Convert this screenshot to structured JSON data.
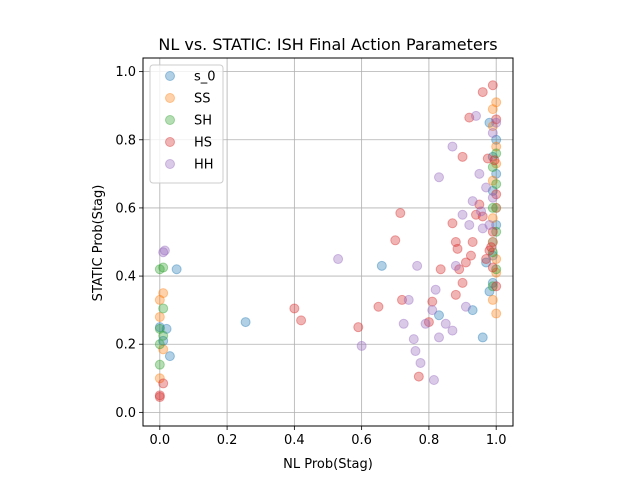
{
  "chart_data": {
    "type": "scatter",
    "title": "NL vs. STATIC: ISH Final Action Parameters",
    "xlabel": "NL Prob(Stag)",
    "ylabel": "STATIC Prob(Stag)",
    "xlim": [
      -0.05,
      1.05
    ],
    "ylim": [
      -0.04,
      1.04
    ],
    "xticks": [
      0.0,
      0.2,
      0.4,
      0.6,
      0.8,
      1.0
    ],
    "yticks": [
      0.0,
      0.2,
      0.4,
      0.6,
      0.8,
      1.0
    ],
    "xtick_labels": [
      "0.0",
      "0.2",
      "0.4",
      "0.6",
      "0.8",
      "1.0"
    ],
    "ytick_labels": [
      "0.0",
      "0.2",
      "0.4",
      "0.6",
      "0.8",
      "1.0"
    ],
    "grid": true,
    "legend_position": "upper-left",
    "marker_alpha": 0.35,
    "series": [
      {
        "name": "s_0",
        "color": "#1f77b4",
        "points": [
          [
            0.0,
            0.25
          ],
          [
            0.01,
            0.21
          ],
          [
            0.02,
            0.245
          ],
          [
            0.03,
            0.165
          ],
          [
            0.05,
            0.42
          ],
          [
            0.255,
            0.265
          ],
          [
            0.66,
            0.43
          ],
          [
            0.83,
            0.285
          ],
          [
            0.93,
            0.3
          ],
          [
            0.96,
            0.22
          ],
          [
            0.97,
            0.44
          ],
          [
            0.98,
            0.355
          ],
          [
            0.99,
            0.38
          ],
          [
            0.99,
            0.46
          ],
          [
            0.99,
            0.5
          ],
          [
            1.0,
            0.55
          ],
          [
            1.0,
            0.6
          ],
          [
            0.99,
            0.65
          ],
          [
            1.0,
            0.7
          ],
          [
            0.99,
            0.75
          ],
          [
            1.0,
            0.8
          ],
          [
            0.98,
            0.85
          ]
        ]
      },
      {
        "name": "SS",
        "color": "#ff7f0e",
        "points": [
          [
            0.0,
            0.1
          ],
          [
            0.01,
            0.185
          ],
          [
            0.0,
            0.28
          ],
          [
            0.01,
            0.35
          ],
          [
            0.0,
            0.33
          ],
          [
            1.0,
            0.29
          ],
          [
            0.99,
            0.33
          ],
          [
            1.0,
            0.41
          ],
          [
            0.99,
            0.5
          ],
          [
            1.0,
            0.6
          ],
          [
            0.99,
            0.68
          ],
          [
            1.0,
            0.73
          ],
          [
            0.99,
            0.84
          ],
          [
            1.0,
            0.91
          ],
          [
            0.99,
            0.89
          ],
          [
            1.0,
            0.78
          ],
          [
            0.99,
            0.57
          ],
          [
            1.0,
            0.45
          ]
        ]
      },
      {
        "name": "SH",
        "color": "#2ca02c",
        "points": [
          [
            0.0,
            0.14
          ],
          [
            0.0,
            0.2
          ],
          [
            0.01,
            0.225
          ],
          [
            0.0,
            0.245
          ],
          [
            0.01,
            0.305
          ],
          [
            0.0,
            0.42
          ],
          [
            0.01,
            0.425
          ],
          [
            0.99,
            0.37
          ],
          [
            1.0,
            0.42
          ],
          [
            0.99,
            0.47
          ],
          [
            1.0,
            0.53
          ],
          [
            0.99,
            0.6
          ],
          [
            1.0,
            0.67
          ],
          [
            0.99,
            0.72
          ],
          [
            1.0,
            0.76
          ]
        ]
      },
      {
        "name": "HS",
        "color": "#d62728",
        "points": [
          [
            0.0,
            0.05
          ],
          [
            0.0,
            0.045
          ],
          [
            0.01,
            0.085
          ],
          [
            0.4,
            0.305
          ],
          [
            0.42,
            0.27
          ],
          [
            0.59,
            0.25
          ],
          [
            0.65,
            0.31
          ],
          [
            0.7,
            0.505
          ],
          [
            0.715,
            0.585
          ],
          [
            0.72,
            0.33
          ],
          [
            0.77,
            0.105
          ],
          [
            0.8,
            0.265
          ],
          [
            0.81,
            0.325
          ],
          [
            0.835,
            0.42
          ],
          [
            0.87,
            0.555
          ],
          [
            0.88,
            0.5
          ],
          [
            0.885,
            0.48
          ],
          [
            0.89,
            0.42
          ],
          [
            0.9,
            0.38
          ],
          [
            0.9,
            0.75
          ],
          [
            0.91,
            0.44
          ],
          [
            0.92,
            0.865
          ],
          [
            0.925,
            0.46
          ],
          [
            0.93,
            0.5
          ],
          [
            0.94,
            0.58
          ],
          [
            0.95,
            0.61
          ],
          [
            0.96,
            0.575
          ],
          [
            0.96,
            0.94
          ],
          [
            0.97,
            0.45
          ],
          [
            0.975,
            0.745
          ],
          [
            0.98,
            0.475
          ],
          [
            0.985,
            0.485
          ],
          [
            0.99,
            0.96
          ],
          [
            0.99,
            0.53
          ],
          [
            1.0,
            0.64
          ],
          [
            0.995,
            0.74
          ],
          [
            1.0,
            0.86
          ],
          [
            0.99,
            0.425
          ],
          [
            1.0,
            0.37
          ],
          [
            0.88,
            0.345
          ]
        ]
      },
      {
        "name": "HH",
        "color": "#9467bd",
        "points": [
          [
            0.01,
            0.47
          ],
          [
            0.015,
            0.475
          ],
          [
            0.53,
            0.45
          ],
          [
            0.6,
            0.195
          ],
          [
            0.725,
            0.26
          ],
          [
            0.74,
            0.33
          ],
          [
            0.755,
            0.215
          ],
          [
            0.76,
            0.18
          ],
          [
            0.765,
            0.43
          ],
          [
            0.775,
            0.145
          ],
          [
            0.79,
            0.26
          ],
          [
            0.81,
            0.3
          ],
          [
            0.815,
            0.095
          ],
          [
            0.82,
            0.36
          ],
          [
            0.83,
            0.69
          ],
          [
            0.83,
            0.22
          ],
          [
            0.85,
            0.26
          ],
          [
            0.87,
            0.24
          ],
          [
            0.87,
            0.78
          ],
          [
            0.88,
            0.43
          ],
          [
            0.9,
            0.58
          ],
          [
            0.91,
            0.31
          ],
          [
            0.92,
            0.55
          ],
          [
            0.93,
            0.62
          ],
          [
            0.94,
            0.87
          ],
          [
            0.95,
            0.7
          ],
          [
            0.955,
            0.59
          ],
          [
            0.96,
            0.54
          ],
          [
            0.97,
            0.66
          ],
          [
            0.98,
            0.55
          ],
          [
            0.99,
            0.82
          ],
          [
            0.99,
            0.63
          ],
          [
            1.0,
            0.85
          ]
        ]
      }
    ]
  }
}
